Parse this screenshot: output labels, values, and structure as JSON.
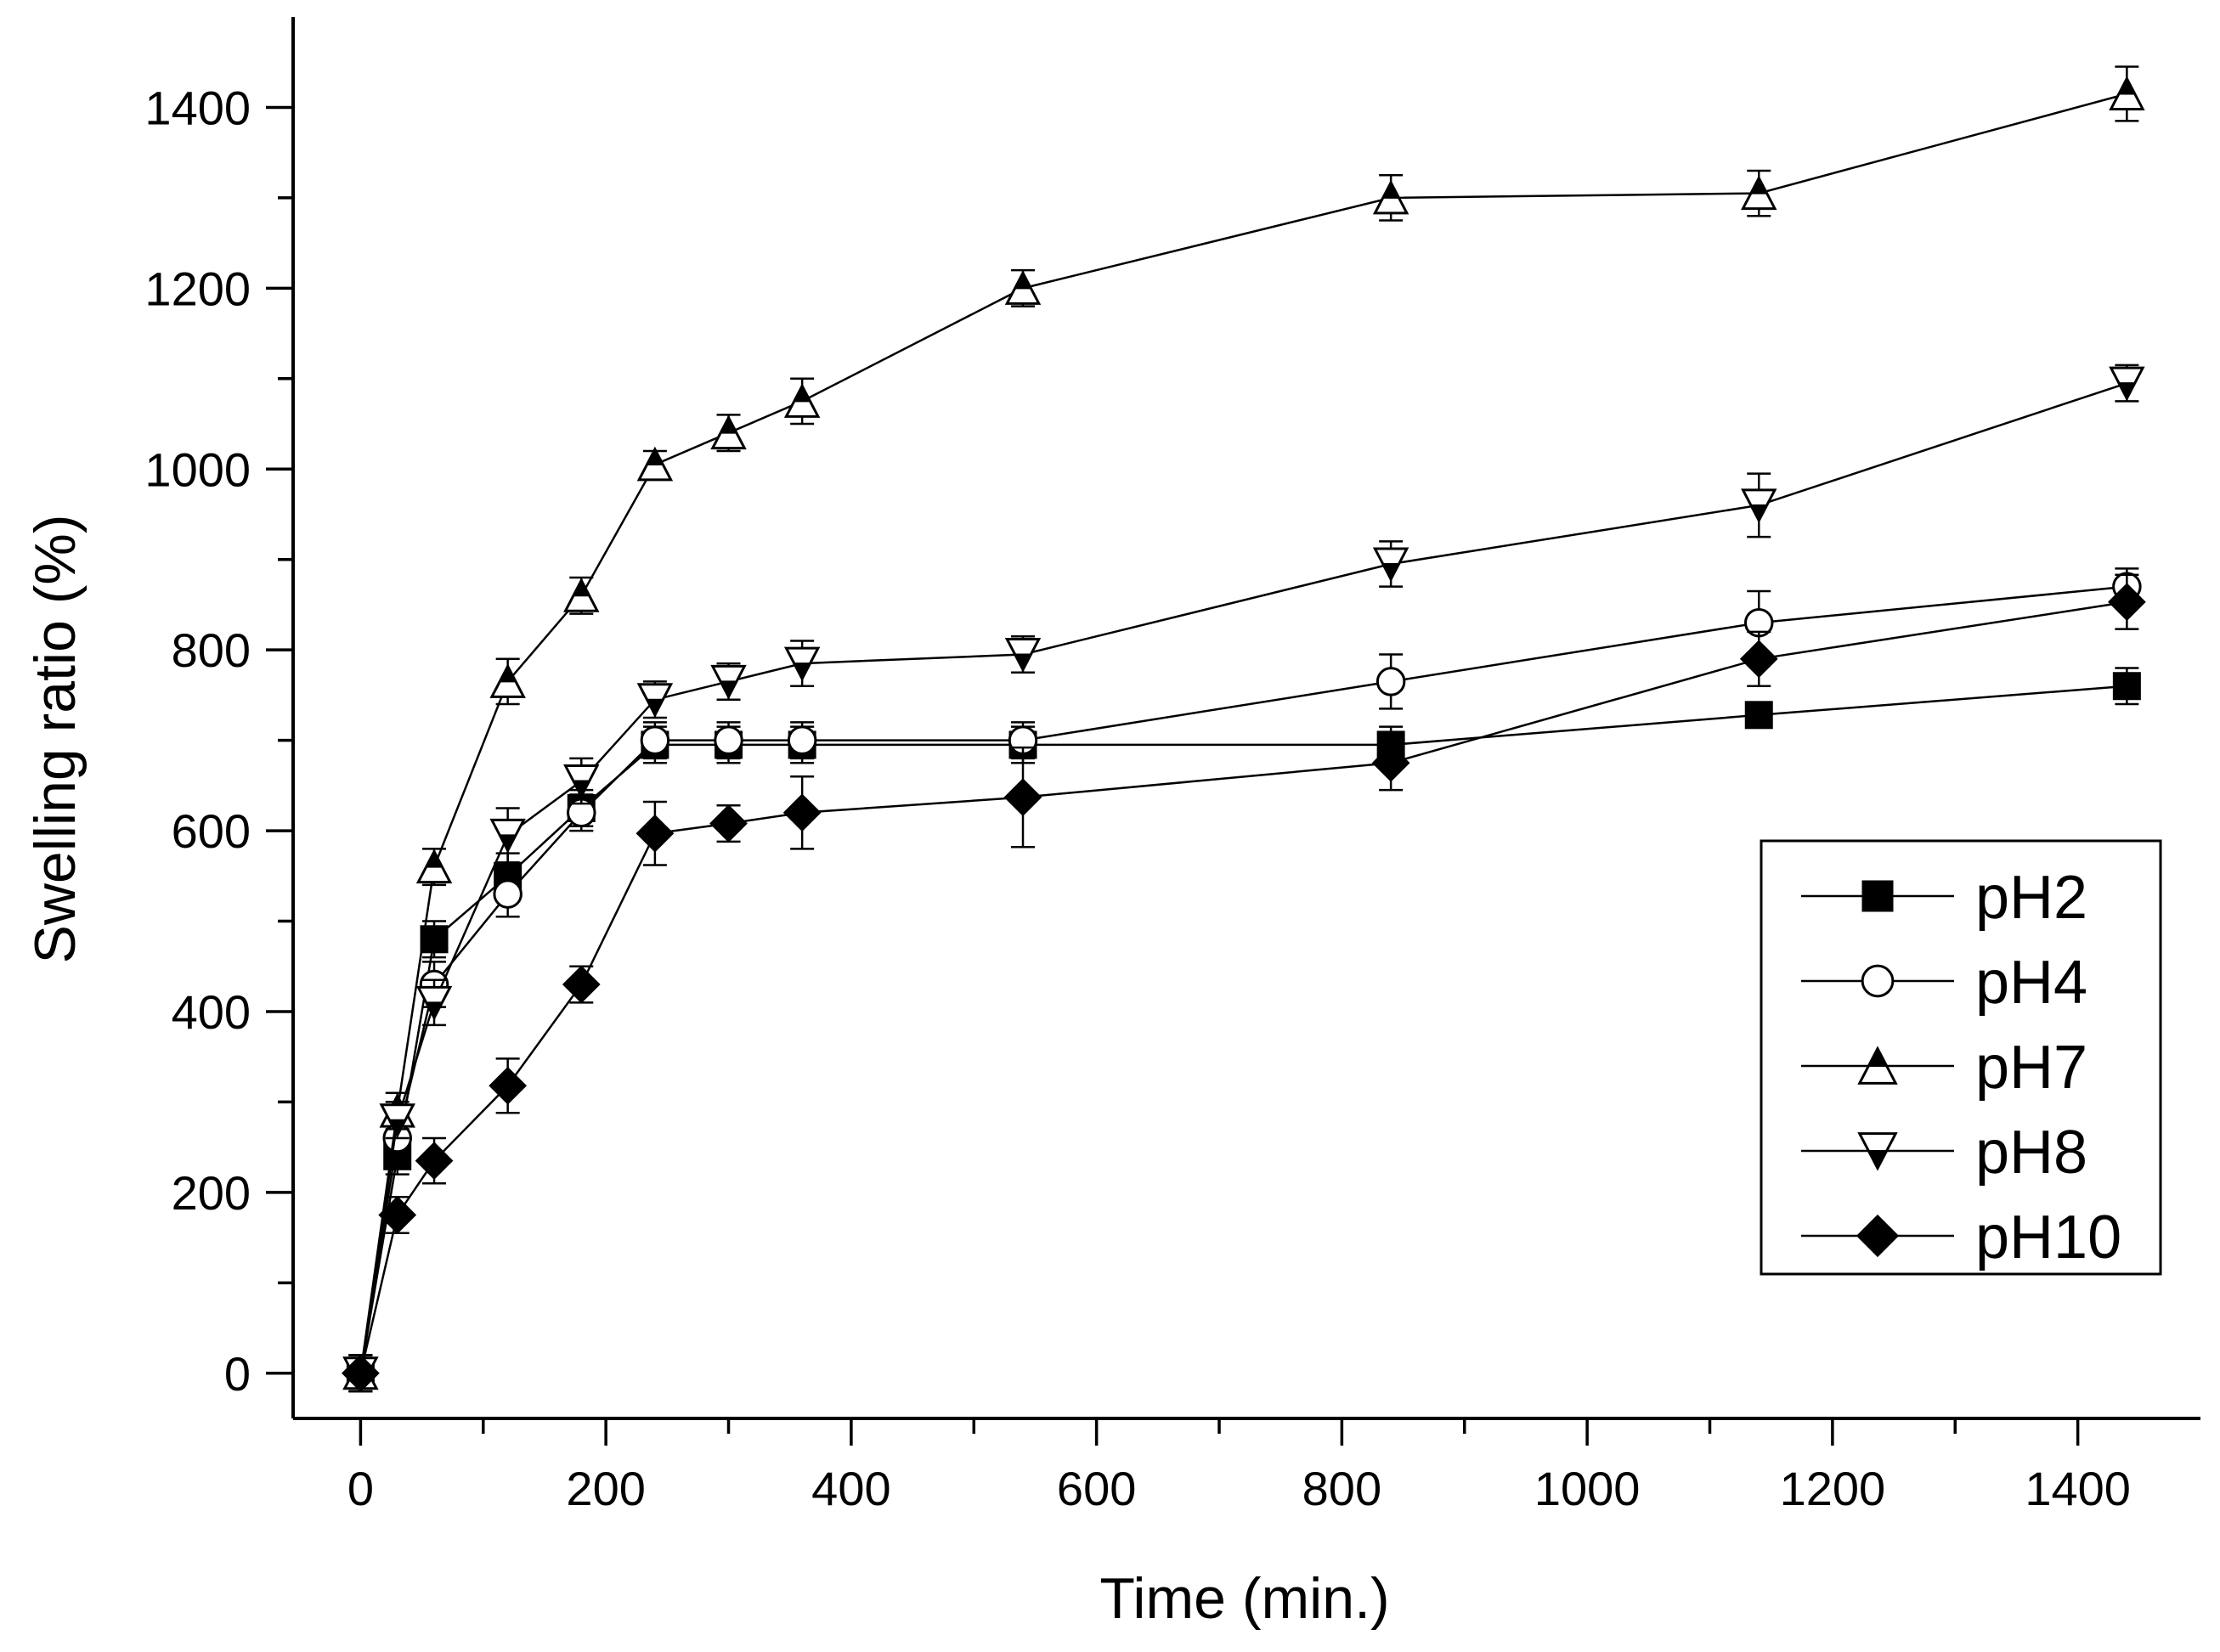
{
  "chart_data": {
    "type": "line",
    "title": "",
    "xlabel": "Time (min.)",
    "ylabel": "Swelling ratio (%)",
    "xlim": [
      -55,
      1500
    ],
    "ylim": [
      -50,
      1500
    ],
    "xticks": [
      0,
      200,
      400,
      600,
      800,
      1000,
      1200,
      1400
    ],
    "yticks": [
      0,
      200,
      400,
      600,
      800,
      1000,
      1200,
      1400
    ],
    "grid": false,
    "legend_position": "right",
    "x": [
      0,
      30,
      60,
      120,
      180,
      240,
      300,
      360,
      540,
      840,
      1140,
      1440
    ],
    "series": [
      {
        "name": "pH2",
        "marker": "square",
        "fill": "filled",
        "values": [
          0,
          240,
          480,
          550,
          625,
          695,
          695,
          695,
          695,
          695,
          728,
          760
        ],
        "errors": [
          20,
          20,
          20,
          25,
          20,
          20,
          20,
          20,
          20,
          20,
          10,
          20
        ]
      },
      {
        "name": "pH4",
        "marker": "circle",
        "fill": "open",
        "values": [
          0,
          260,
          430,
          530,
          620,
          700,
          700,
          700,
          700,
          765,
          830,
          870
        ],
        "errors": [
          20,
          25,
          25,
          25,
          20,
          20,
          20,
          20,
          20,
          30,
          35,
          20
        ]
      },
      {
        "name": "pH7",
        "marker": "triangle-up",
        "fill": "half",
        "values": [
          0,
          290,
          560,
          765,
          860,
          1005,
          1040,
          1075,
          1200,
          1300,
          1305,
          1415
        ],
        "errors": [
          20,
          20,
          20,
          25,
          20,
          15,
          20,
          25,
          20,
          25,
          25,
          30
        ]
      },
      {
        "name": "pH8",
        "marker": "triangle-down",
        "fill": "half",
        "values": [
          0,
          280,
          410,
          595,
          655,
          745,
          765,
          785,
          795,
          895,
          960,
          1095
        ],
        "errors": [
          20,
          20,
          25,
          30,
          25,
          20,
          20,
          25,
          20,
          25,
          35,
          20
        ]
      },
      {
        "name": "pH10",
        "marker": "diamond",
        "fill": "filled",
        "values": [
          0,
          175,
          235,
          318,
          430,
          597,
          608,
          620,
          637,
          675,
          790,
          853
        ],
        "errors": [
          20,
          20,
          25,
          30,
          20,
          35,
          20,
          40,
          55,
          30,
          30,
          30
        ]
      }
    ]
  }
}
